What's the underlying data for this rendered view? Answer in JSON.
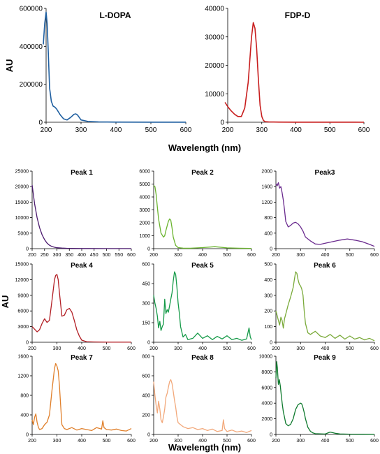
{
  "figure": {
    "top_xlabel": "Wavelength (nm)",
    "bottom_xlabel": "Wavelength (nm)",
    "top_ylabel": "AU",
    "bottom_ylabel": "AU"
  },
  "chart_data": [
    {
      "type": "line",
      "title": "L-DOPA",
      "color": "#1f5fa0",
      "xlim": [
        200,
        600
      ],
      "ylim": [
        0,
        600000
      ],
      "xticks": [
        200,
        300,
        400,
        500,
        600
      ],
      "yticks": [
        0,
        200000,
        400000,
        600000
      ],
      "x": [
        192,
        196,
        200,
        203,
        206,
        210,
        215,
        220,
        225,
        230,
        240,
        250,
        260,
        270,
        280,
        285,
        290,
        300,
        320,
        350,
        400,
        500,
        600
      ],
      "y": [
        410000,
        520000,
        580000,
        520000,
        380000,
        180000,
        110000,
        85000,
        80000,
        70000,
        40000,
        18000,
        12000,
        25000,
        42000,
        44000,
        38000,
        12000,
        4000,
        1500,
        800,
        300,
        200
      ]
    },
    {
      "type": "line",
      "title": "FDP-D",
      "color": "#c81e1e",
      "xlim": [
        200,
        600
      ],
      "ylim": [
        0,
        40000
      ],
      "xticks": [
        200,
        300,
        400,
        500,
        600
      ],
      "yticks": [
        0,
        10000,
        20000,
        30000,
        40000
      ],
      "x": [
        192,
        200,
        210,
        220,
        230,
        240,
        250,
        260,
        265,
        270,
        275,
        280,
        285,
        290,
        295,
        300,
        305,
        310,
        320,
        350,
        400,
        500,
        600
      ],
      "y": [
        7000,
        5500,
        4000,
        2800,
        2000,
        2000,
        5000,
        14000,
        22000,
        30000,
        35000,
        33000,
        26000,
        15000,
        6000,
        2000,
        600,
        200,
        100,
        50,
        30,
        20,
        10
      ]
    },
    {
      "type": "line",
      "title": "Peak 1",
      "color": "#4b1a6e",
      "xlim": [
        200,
        600
      ],
      "ylim": [
        0,
        25000
      ],
      "xticks": [
        200,
        250,
        300,
        350,
        400,
        450,
        500,
        550,
        600
      ],
      "yticks": [
        0,
        5000,
        10000,
        15000,
        20000,
        25000
      ],
      "x": [
        200,
        210,
        220,
        230,
        240,
        250,
        260,
        270,
        280,
        290,
        300,
        320,
        340,
        360,
        400,
        500,
        600
      ],
      "y": [
        20500,
        14500,
        10000,
        6800,
        4500,
        2900,
        1800,
        1100,
        700,
        450,
        300,
        180,
        120,
        80,
        50,
        30,
        20
      ]
    },
    {
      "type": "line",
      "title": "Peak 2",
      "color": "#6ab42e",
      "xlim": [
        200,
        600
      ],
      "ylim": [
        0,
        6000
      ],
      "xticks": [
        200,
        300,
        400,
        500,
        600
      ],
      "yticks": [
        0,
        1000,
        2000,
        3000,
        4000,
        5000,
        6000
      ],
      "x": [
        200,
        205,
        210,
        215,
        220,
        230,
        240,
        245,
        250,
        260,
        265,
        270,
        275,
        280,
        290,
        300,
        320,
        350,
        400,
        450,
        500,
        550,
        600
      ],
      "y": [
        4900,
        4800,
        4200,
        3200,
        2300,
        1200,
        900,
        1000,
        1400,
        2100,
        2300,
        2200,
        1600,
        900,
        250,
        80,
        40,
        30,
        80,
        150,
        60,
        30,
        20
      ]
    },
    {
      "type": "line",
      "title": "Peak3",
      "color": "#6a2a8e",
      "xlim": [
        200,
        600
      ],
      "ylim": [
        0,
        2000
      ],
      "xticks": [
        200,
        300,
        400,
        500,
        600
      ],
      "yticks": [
        0,
        400,
        800,
        1200,
        1600,
        2000
      ],
      "x": [
        200,
        205,
        210,
        215,
        220,
        225,
        230,
        235,
        240,
        250,
        260,
        270,
        280,
        290,
        300,
        310,
        320,
        340,
        360,
        380,
        400,
        430,
        460,
        490,
        520,
        550,
        580,
        600
      ],
      "y": [
        1680,
        1620,
        1700,
        1560,
        1600,
        1450,
        1250,
        1000,
        700,
        560,
        600,
        660,
        680,
        640,
        560,
        450,
        300,
        200,
        120,
        110,
        140,
        180,
        220,
        250,
        220,
        180,
        110,
        60
      ]
    },
    {
      "type": "line",
      "title": "Peak 4",
      "color": "#b21e24",
      "xlim": [
        200,
        600
      ],
      "ylim": [
        0,
        15000
      ],
      "xticks": [
        200,
        300,
        400,
        500,
        600
      ],
      "yticks": [
        0,
        3000,
        6000,
        9000,
        12000,
        15000
      ],
      "x": [
        200,
        210,
        220,
        230,
        240,
        250,
        260,
        270,
        280,
        290,
        295,
        300,
        305,
        310,
        320,
        330,
        340,
        350,
        360,
        370,
        380,
        390,
        400,
        420,
        450,
        500,
        600
      ],
      "y": [
        3000,
        2500,
        2000,
        2400,
        3600,
        4500,
        3800,
        4200,
        8000,
        12000,
        12800,
        13000,
        12000,
        9500,
        5000,
        5200,
        6200,
        6500,
        5800,
        4200,
        2400,
        1200,
        400,
        100,
        50,
        20,
        10
      ]
    },
    {
      "type": "line",
      "title": "Peak 5",
      "color": "#159a48",
      "xlim": [
        200,
        600
      ],
      "ylim": [
        0,
        600
      ],
      "xticks": [
        200,
        300,
        400,
        500,
        600
      ],
      "yticks": [
        0,
        150,
        300,
        450,
        600
      ],
      "x": [
        200,
        205,
        210,
        215,
        220,
        225,
        230,
        235,
        240,
        245,
        250,
        255,
        260,
        265,
        270,
        275,
        280,
        285,
        290,
        295,
        300,
        305,
        310,
        315,
        320,
        330,
        340,
        360,
        380,
        400,
        420,
        440,
        460,
        480,
        500,
        520,
        540,
        560,
        580,
        590,
        595,
        600
      ],
      "y": [
        360,
        300,
        260,
        200,
        110,
        160,
        90,
        120,
        140,
        330,
        220,
        250,
        230,
        280,
        330,
        380,
        470,
        540,
        520,
        420,
        300,
        220,
        120,
        80,
        40,
        60,
        20,
        30,
        70,
        30,
        50,
        20,
        45,
        25,
        50,
        20,
        30,
        15,
        25,
        110,
        40,
        20
      ]
    },
    {
      "type": "line",
      "title": "Peak 6",
      "color": "#7aaa3a",
      "xlim": [
        200,
        600
      ],
      "ylim": [
        0,
        500
      ],
      "xticks": [
        200,
        300,
        400,
        500,
        600
      ],
      "yticks": [
        0,
        100,
        200,
        300,
        400,
        500
      ],
      "x": [
        200,
        205,
        210,
        215,
        220,
        225,
        230,
        235,
        240,
        250,
        260,
        270,
        275,
        280,
        285,
        290,
        295,
        300,
        305,
        310,
        315,
        320,
        330,
        340,
        360,
        380,
        400,
        420,
        440,
        460,
        480,
        500,
        520,
        540,
        560,
        580,
        600
      ],
      "y": [
        200,
        170,
        140,
        110,
        160,
        140,
        90,
        150,
        180,
        240,
        290,
        350,
        400,
        450,
        440,
        400,
        370,
        360,
        340,
        300,
        200,
        120,
        60,
        50,
        70,
        40,
        30,
        50,
        25,
        45,
        20,
        40,
        20,
        30,
        15,
        25,
        10
      ]
    },
    {
      "type": "line",
      "title": "Peak 7",
      "color": "#e07f2a",
      "xlim": [
        200,
        600
      ],
      "ylim": [
        0,
        1600
      ],
      "xticks": [
        200,
        300,
        400,
        500,
        600
      ],
      "yticks": [
        0,
        400,
        800,
        1200,
        1600
      ],
      "x": [
        200,
        205,
        210,
        215,
        220,
        225,
        230,
        240,
        250,
        260,
        270,
        280,
        290,
        295,
        300,
        305,
        310,
        315,
        320,
        330,
        340,
        360,
        380,
        400,
        420,
        440,
        460,
        480,
        485,
        490,
        500,
        520,
        540,
        560,
        580,
        600
      ],
      "y": [
        300,
        200,
        350,
        420,
        250,
        150,
        100,
        120,
        200,
        250,
        400,
        900,
        1350,
        1450,
        1400,
        1300,
        1000,
        600,
        200,
        120,
        100,
        140,
        90,
        120,
        100,
        80,
        140,
        110,
        280,
        140,
        100,
        90,
        110,
        80,
        70,
        120
      ]
    },
    {
      "type": "line",
      "title": "Peak 8",
      "color": "#f2a87a",
      "xlim": [
        200,
        600
      ],
      "ylim": [
        0,
        800
      ],
      "xticks": [
        200,
        300,
        400,
        500,
        600
      ],
      "yticks": [
        0,
        200,
        400,
        600,
        800
      ],
      "x": [
        200,
        205,
        210,
        215,
        220,
        225,
        230,
        235,
        240,
        245,
        250,
        255,
        260,
        265,
        270,
        275,
        280,
        285,
        290,
        295,
        300,
        310,
        320,
        340,
        360,
        380,
        400,
        420,
        440,
        460,
        480,
        485,
        490,
        500,
        520,
        540,
        560,
        580,
        600
      ],
      "y": [
        540,
        400,
        300,
        220,
        340,
        260,
        150,
        120,
        180,
        260,
        380,
        420,
        480,
        540,
        560,
        520,
        440,
        350,
        280,
        180,
        120,
        100,
        80,
        60,
        70,
        50,
        60,
        40,
        55,
        30,
        40,
        150,
        60,
        30,
        45,
        25,
        35,
        20,
        40
      ]
    },
    {
      "type": "line",
      "title": "Peak 9",
      "color": "#0f7a2e",
      "xlim": [
        200,
        600
      ],
      "ylim": [
        0,
        10000
      ],
      "xticks": [
        200,
        300,
        400,
        500,
        600
      ],
      "yticks": [
        0,
        2000,
        4000,
        6000,
        8000,
        10000
      ],
      "x": [
        200,
        203,
        206,
        210,
        214,
        218,
        222,
        226,
        230,
        235,
        240,
        250,
        260,
        270,
        280,
        290,
        300,
        305,
        310,
        315,
        320,
        330,
        340,
        350,
        360,
        380,
        400,
        420,
        440,
        460,
        500,
        550,
        600
      ],
      "y": [
        7200,
        9300,
        8500,
        6400,
        7000,
        6200,
        4900,
        3800,
        2900,
        2200,
        1400,
        1100,
        1300,
        2000,
        3200,
        3800,
        4000,
        3900,
        3400,
        2800,
        2000,
        900,
        400,
        200,
        100,
        80,
        50,
        300,
        150,
        60,
        40,
        30,
        20
      ]
    }
  ]
}
